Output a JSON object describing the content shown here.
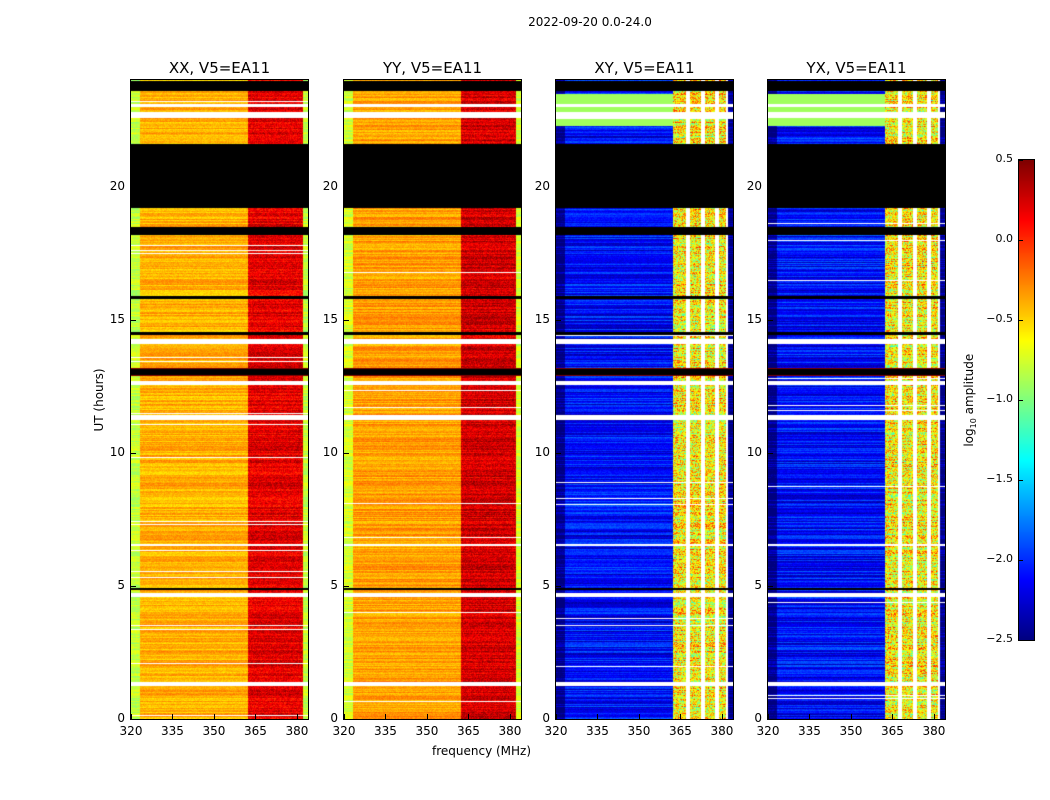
{
  "chart_data": {
    "type": "heatmap",
    "title": "2022-09-20 0.0-24.0",
    "xlabel": "frequency (MHz)",
    "ylabel": "UT (hours)",
    "xlim": [
      320,
      384
    ],
    "ylim": [
      0,
      24
    ],
    "xticks": [
      "320",
      "335",
      "350",
      "365",
      "380"
    ],
    "xtick_values": [
      320,
      335,
      350,
      365,
      380
    ],
    "yticks": [
      "0",
      "5",
      "10",
      "15",
      "20"
    ],
    "ytick_values": [
      0,
      5,
      10,
      15,
      20
    ],
    "panels": [
      {
        "title": "XX, V5=EA11",
        "pol": "parallel",
        "base_level": -0.4,
        "rfi_level": 0.2
      },
      {
        "title": "YY, V5=EA11",
        "pol": "parallel",
        "base_level": -0.35,
        "rfi_level": 0.25
      },
      {
        "title": "XY, V5=EA11",
        "pol": "cross",
        "base_level": -2.1,
        "rfi_level": -0.6
      },
      {
        "title": "YX, V5=EA11",
        "pol": "cross",
        "base_level": -2.1,
        "rfi_level": -0.6
      }
    ],
    "rfi_band_mhz": [
      362,
      382
    ],
    "flagged_black_hours": [
      [
        19.2,
        21.6
      ],
      [
        18.2,
        18.5
      ],
      [
        23.6,
        24
      ],
      [
        12.95,
        13.15
      ],
      [
        14.45,
        14.55
      ],
      [
        15.8,
        15.9
      ],
      [
        4.85,
        4.95
      ]
    ],
    "flagged_white_hours": [
      [
        1.25,
        1.4
      ],
      [
        4.6,
        4.75
      ],
      [
        11.25,
        11.45
      ],
      [
        12.55,
        12.7
      ],
      [
        14.1,
        14.3
      ],
      [
        22.6,
        22.8
      ],
      [
        23.0,
        23.1
      ],
      [
        6.5,
        6.6
      ]
    ],
    "colorbar": {
      "label": "log10 amplitude",
      "label_main": "log",
      "label_sub": "10",
      "label_rest": " amplitude",
      "range": [
        -2.5,
        0.5
      ],
      "ticks": [
        "0.5",
        "0.0",
        "−0.5",
        "−1.0",
        "−1.5",
        "−2.0",
        "−2.5"
      ],
      "tick_values": [
        0.5,
        0.0,
        -0.5,
        -1.0,
        -1.5,
        -2.0,
        -2.5
      ],
      "colormap": "jet"
    }
  }
}
